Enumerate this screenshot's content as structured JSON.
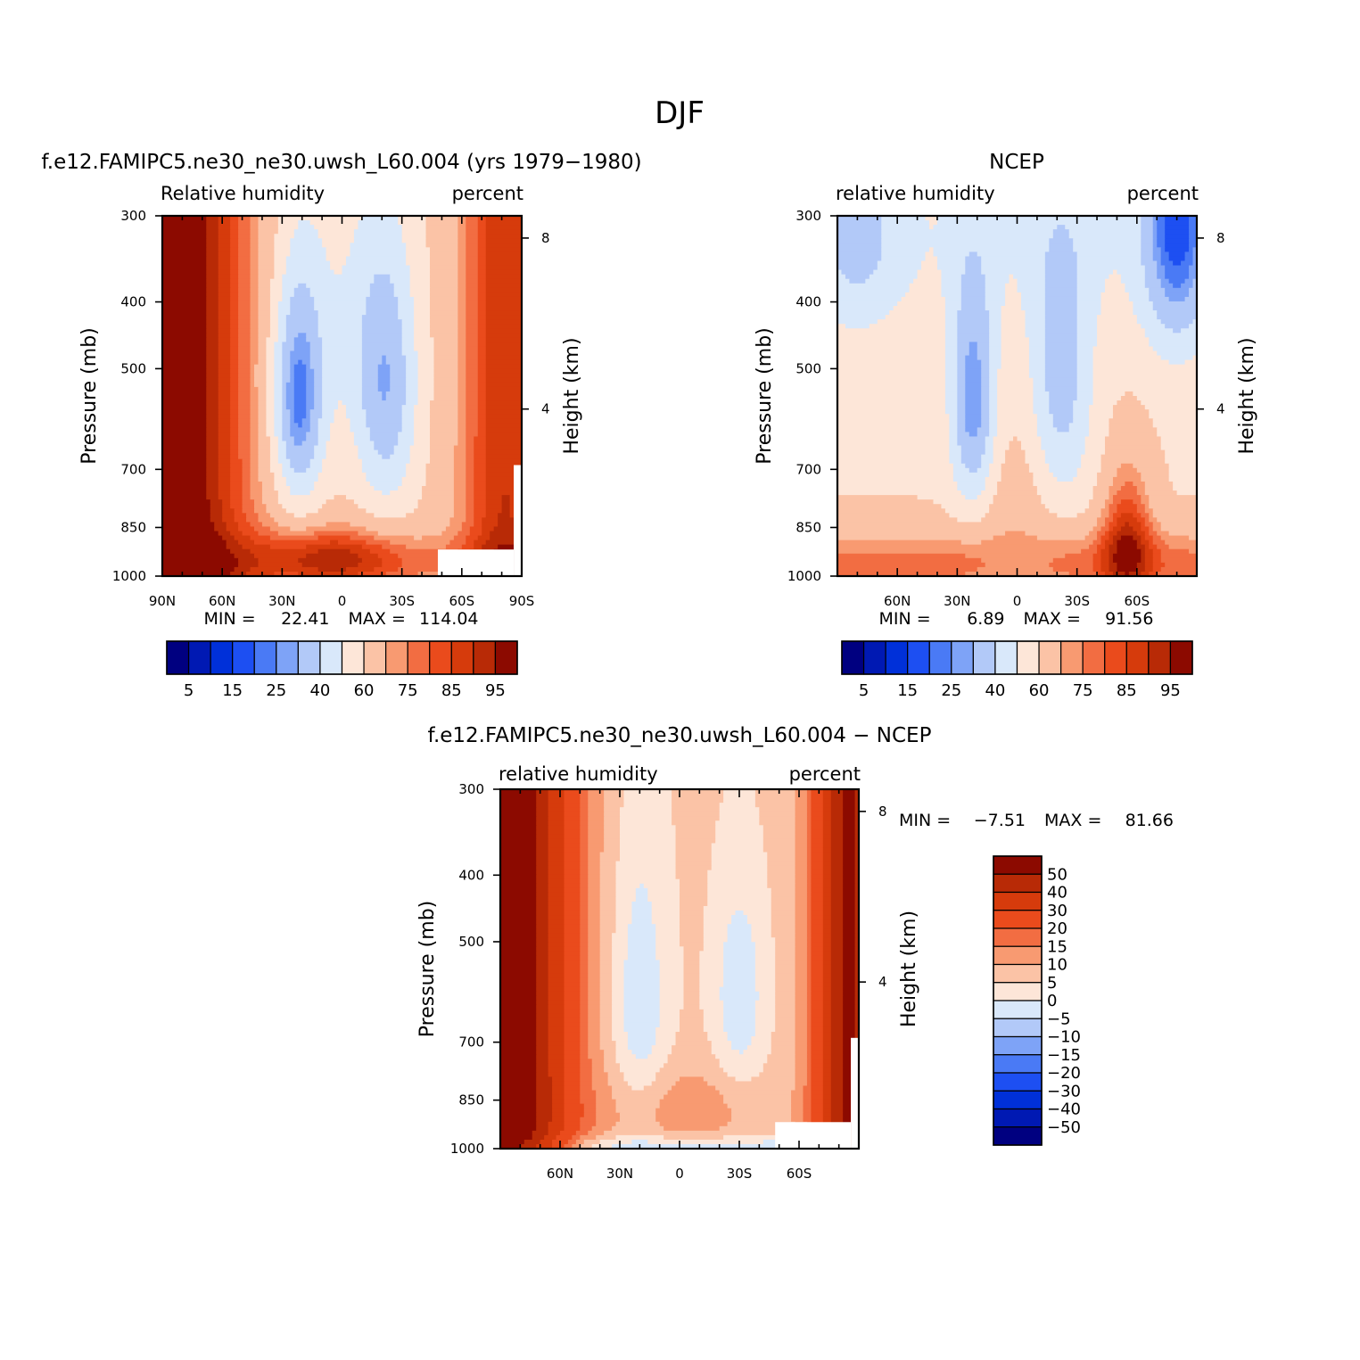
{
  "figure": {
    "title": "DJF"
  },
  "chart_data": [
    {
      "type": "heatmap",
      "title": "f.e12.FAMIPC5.ne30_ne30.uwsh_L60.004 (yrs 1979-1980)",
      "left_subtitle": "Relative humidity",
      "right_subtitle": "percent",
      "xlabel": "",
      "ylabel": "Pressure (mb)",
      "right_ylabel": "Height (km)",
      "x_ticks": [
        {
          "lat": 90,
          "label": "90N"
        },
        {
          "lat": 60,
          "label": "60N"
        },
        {
          "lat": 30,
          "label": "30N"
        },
        {
          "lat": 0,
          "label": "0"
        },
        {
          "lat": -30,
          "label": "30S"
        },
        {
          "lat": -60,
          "label": "60S"
        },
        {
          "lat": -90,
          "label": "90S"
        }
      ],
      "xlim": [
        90,
        -90
      ],
      "y_ticks": [
        300,
        400,
        500,
        700,
        850,
        1000
      ],
      "ylim": [
        300,
        1000
      ],
      "y_scale": "log",
      "height_ticks": [
        {
          "km": 8,
          "label": "8"
        },
        {
          "km": 4,
          "label": "4"
        }
      ],
      "min_label": "MIN =",
      "min_value": "22.41",
      "max_label": "MAX =",
      "max_value": "114.04",
      "grid": false,
      "levels": [
        5,
        10,
        15,
        20,
        25,
        30,
        40,
        50,
        60,
        70,
        75,
        80,
        85,
        90,
        95
      ],
      "colorbar": {
        "orientation": "horizontal",
        "labels": [
          "5",
          "15",
          "25",
          "40",
          "60",
          "75",
          "85",
          "95"
        ],
        "colors": [
          "#000080",
          "#0019b3",
          "#0030d9",
          "#1d4ff2",
          "#4a7af5",
          "#7ea3f7",
          "#b2c9f8",
          "#d9e8fa",
          "#fde6d8",
          "#fbc3a6",
          "#f89a71",
          "#f26d42",
          "#ea4b1c",
          "#d63b0c",
          "#b82a06",
          "#8c0a00"
        ]
      },
      "field": "model"
    },
    {
      "type": "heatmap",
      "title": "NCEP",
      "left_subtitle": "relative humidity",
      "right_subtitle": "percent",
      "xlabel": "",
      "ylabel": "Pressure (mb)",
      "right_ylabel": "Height (km)",
      "x_ticks": [
        {
          "lat": 60,
          "label": "60N"
        },
        {
          "lat": 30,
          "label": "30N"
        },
        {
          "lat": 0,
          "label": "0"
        },
        {
          "lat": -30,
          "label": "30S"
        },
        {
          "lat": -60,
          "label": "60S"
        }
      ],
      "xlim": [
        90,
        -90
      ],
      "y_ticks": [
        300,
        400,
        500,
        700,
        850,
        1000
      ],
      "ylim": [
        300,
        1000
      ],
      "y_scale": "log",
      "height_ticks": [
        {
          "km": 8,
          "label": "8"
        },
        {
          "km": 4,
          "label": "4"
        }
      ],
      "min_label": "MIN =",
      "min_value": "6.89",
      "max_label": "MAX =",
      "max_value": "91.56",
      "grid": false,
      "levels": [
        5,
        10,
        15,
        20,
        25,
        30,
        40,
        50,
        60,
        70,
        75,
        80,
        85,
        90,
        95
      ],
      "colorbar": {
        "orientation": "horizontal",
        "labels": [
          "5",
          "15",
          "25",
          "40",
          "60",
          "75",
          "85",
          "95"
        ],
        "colors": [
          "#000080",
          "#0019b3",
          "#0030d9",
          "#1d4ff2",
          "#4a7af5",
          "#7ea3f7",
          "#b2c9f8",
          "#d9e8fa",
          "#fde6d8",
          "#fbc3a6",
          "#f89a71",
          "#f26d42",
          "#ea4b1c",
          "#d63b0c",
          "#b82a06",
          "#8c0a00"
        ]
      },
      "field": "ncep"
    },
    {
      "type": "heatmap",
      "title": "f.e12.FAMIPC5.ne30_ne30.uwsh_L60.004 - NCEP",
      "left_subtitle": "relative humidity",
      "right_subtitle": "percent",
      "xlabel": "",
      "ylabel": "Pressure (mb)",
      "right_ylabel": "Height (km)",
      "x_ticks": [
        {
          "lat": 60,
          "label": "60N"
        },
        {
          "lat": 30,
          "label": "30N"
        },
        {
          "lat": 0,
          "label": "0"
        },
        {
          "lat": -30,
          "label": "30S"
        },
        {
          "lat": -60,
          "label": "60S"
        }
      ],
      "xlim": [
        90,
        -90
      ],
      "y_ticks": [
        300,
        400,
        500,
        700,
        850,
        1000
      ],
      "ylim": [
        300,
        1000
      ],
      "y_scale": "log",
      "height_ticks": [
        {
          "km": 8,
          "label": "8"
        },
        {
          "km": 4,
          "label": "4"
        }
      ],
      "min_label": "MIN =",
      "min_value": "-7.51",
      "max_label": "MAX =",
      "max_value": "81.66",
      "grid": false,
      "levels": [
        -50,
        -40,
        -30,
        -20,
        -15,
        -10,
        -5,
        0,
        5,
        10,
        15,
        20,
        30,
        40,
        50
      ],
      "colorbar": {
        "orientation": "vertical",
        "labels": [
          "50",
          "40",
          "30",
          "20",
          "15",
          "10",
          "5",
          "0",
          "-5",
          "-10",
          "-15",
          "-20",
          "-30",
          "-40",
          "-50"
        ],
        "colors": [
          "#000080",
          "#0019b3",
          "#0030d9",
          "#1d4ff2",
          "#4a7af5",
          "#7ea3f7",
          "#b2c9f8",
          "#d9e8fa",
          "#fde6d8",
          "#fbc3a6",
          "#f89a71",
          "#f26d42",
          "#ea4b1c",
          "#d63b0c",
          "#b82a06",
          "#8c0a00"
        ]
      },
      "field": "diff"
    }
  ]
}
